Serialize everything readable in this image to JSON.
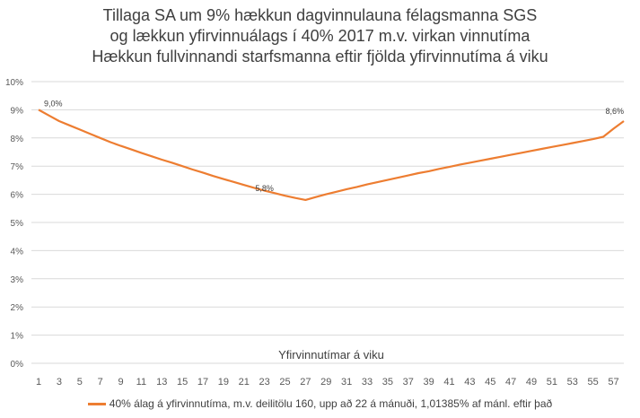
{
  "chart_data": {
    "type": "line",
    "title": [
      "Tillaga SA um 9% hækkun dagvinnulauna félagsmanna SGS",
      "og lækkun yfirvinnuálags í 40% 2017 m.v. virkan vinnutíma",
      "Hækkun fullvinnandi starfsmanna eftir fjölda yfirvinnutíma á viku"
    ],
    "xlabel": "Yfirvinnutímar á viku",
    "ylabel": "",
    "x": [
      1,
      2,
      3,
      4,
      5,
      6,
      7,
      8,
      9,
      10,
      11,
      12,
      13,
      14,
      15,
      16,
      17,
      18,
      19,
      20,
      21,
      22,
      23,
      24,
      25,
      26,
      27,
      28,
      29,
      30,
      31,
      32,
      33,
      34,
      35,
      36,
      37,
      38,
      39,
      40,
      41,
      42,
      43,
      44,
      45,
      46,
      47,
      48,
      49,
      50,
      51,
      52,
      53,
      54,
      55,
      56,
      57,
      58
    ],
    "x_tick_labels": [
      "1",
      "3",
      "5",
      "7",
      "9",
      "11",
      "13",
      "15",
      "17",
      "19",
      "21",
      "23",
      "25",
      "27",
      "29",
      "31",
      "33",
      "35",
      "37",
      "39",
      "41",
      "43",
      "45",
      "47",
      "49",
      "51",
      "53",
      "55",
      "57"
    ],
    "x_tick_values": [
      1,
      3,
      5,
      7,
      9,
      11,
      13,
      15,
      17,
      19,
      21,
      23,
      25,
      27,
      29,
      31,
      33,
      35,
      37,
      39,
      41,
      43,
      45,
      47,
      49,
      51,
      53,
      55,
      57
    ],
    "y_tick_labels": [
      "0%",
      "1%",
      "2%",
      "3%",
      "4%",
      "5%",
      "6%",
      "7%",
      "8%",
      "9%",
      "10%"
    ],
    "y_tick_values": [
      0,
      1,
      2,
      3,
      4,
      5,
      6,
      7,
      8,
      9,
      10
    ],
    "ylim": [
      0,
      10
    ],
    "grid": true,
    "legend_position": "bottom",
    "series": [
      {
        "name": "40% álag á yfirvinnutíma, m.v. deilitölu 160, upp að 22 á mánuði, 1,01385% af mánl. eftir það",
        "color": "#ED7D31",
        "values": [
          9.0,
          8.8,
          8.6,
          8.45,
          8.3,
          8.15,
          8.0,
          7.85,
          7.72,
          7.6,
          7.47,
          7.35,
          7.23,
          7.12,
          7.0,
          6.88,
          6.77,
          6.65,
          6.54,
          6.44,
          6.33,
          6.23,
          6.13,
          6.04,
          5.95,
          5.87,
          5.8,
          5.9,
          6.0,
          6.09,
          6.18,
          6.26,
          6.35,
          6.43,
          6.51,
          6.59,
          6.67,
          6.75,
          6.82,
          6.9,
          6.97,
          7.05,
          7.12,
          7.19,
          7.26,
          7.33,
          7.4,
          7.47,
          7.54,
          7.61,
          7.68,
          7.75,
          7.82,
          7.89,
          7.96,
          8.04,
          8.33,
          8.6
        ]
      }
    ],
    "annotations": [
      {
        "x": 1,
        "y": 9.0,
        "text": "9,0%"
      },
      {
        "x": 23,
        "y": 5.8,
        "text": "5,8%"
      },
      {
        "x": 58,
        "y": 8.6,
        "text": "8,6%"
      }
    ]
  }
}
